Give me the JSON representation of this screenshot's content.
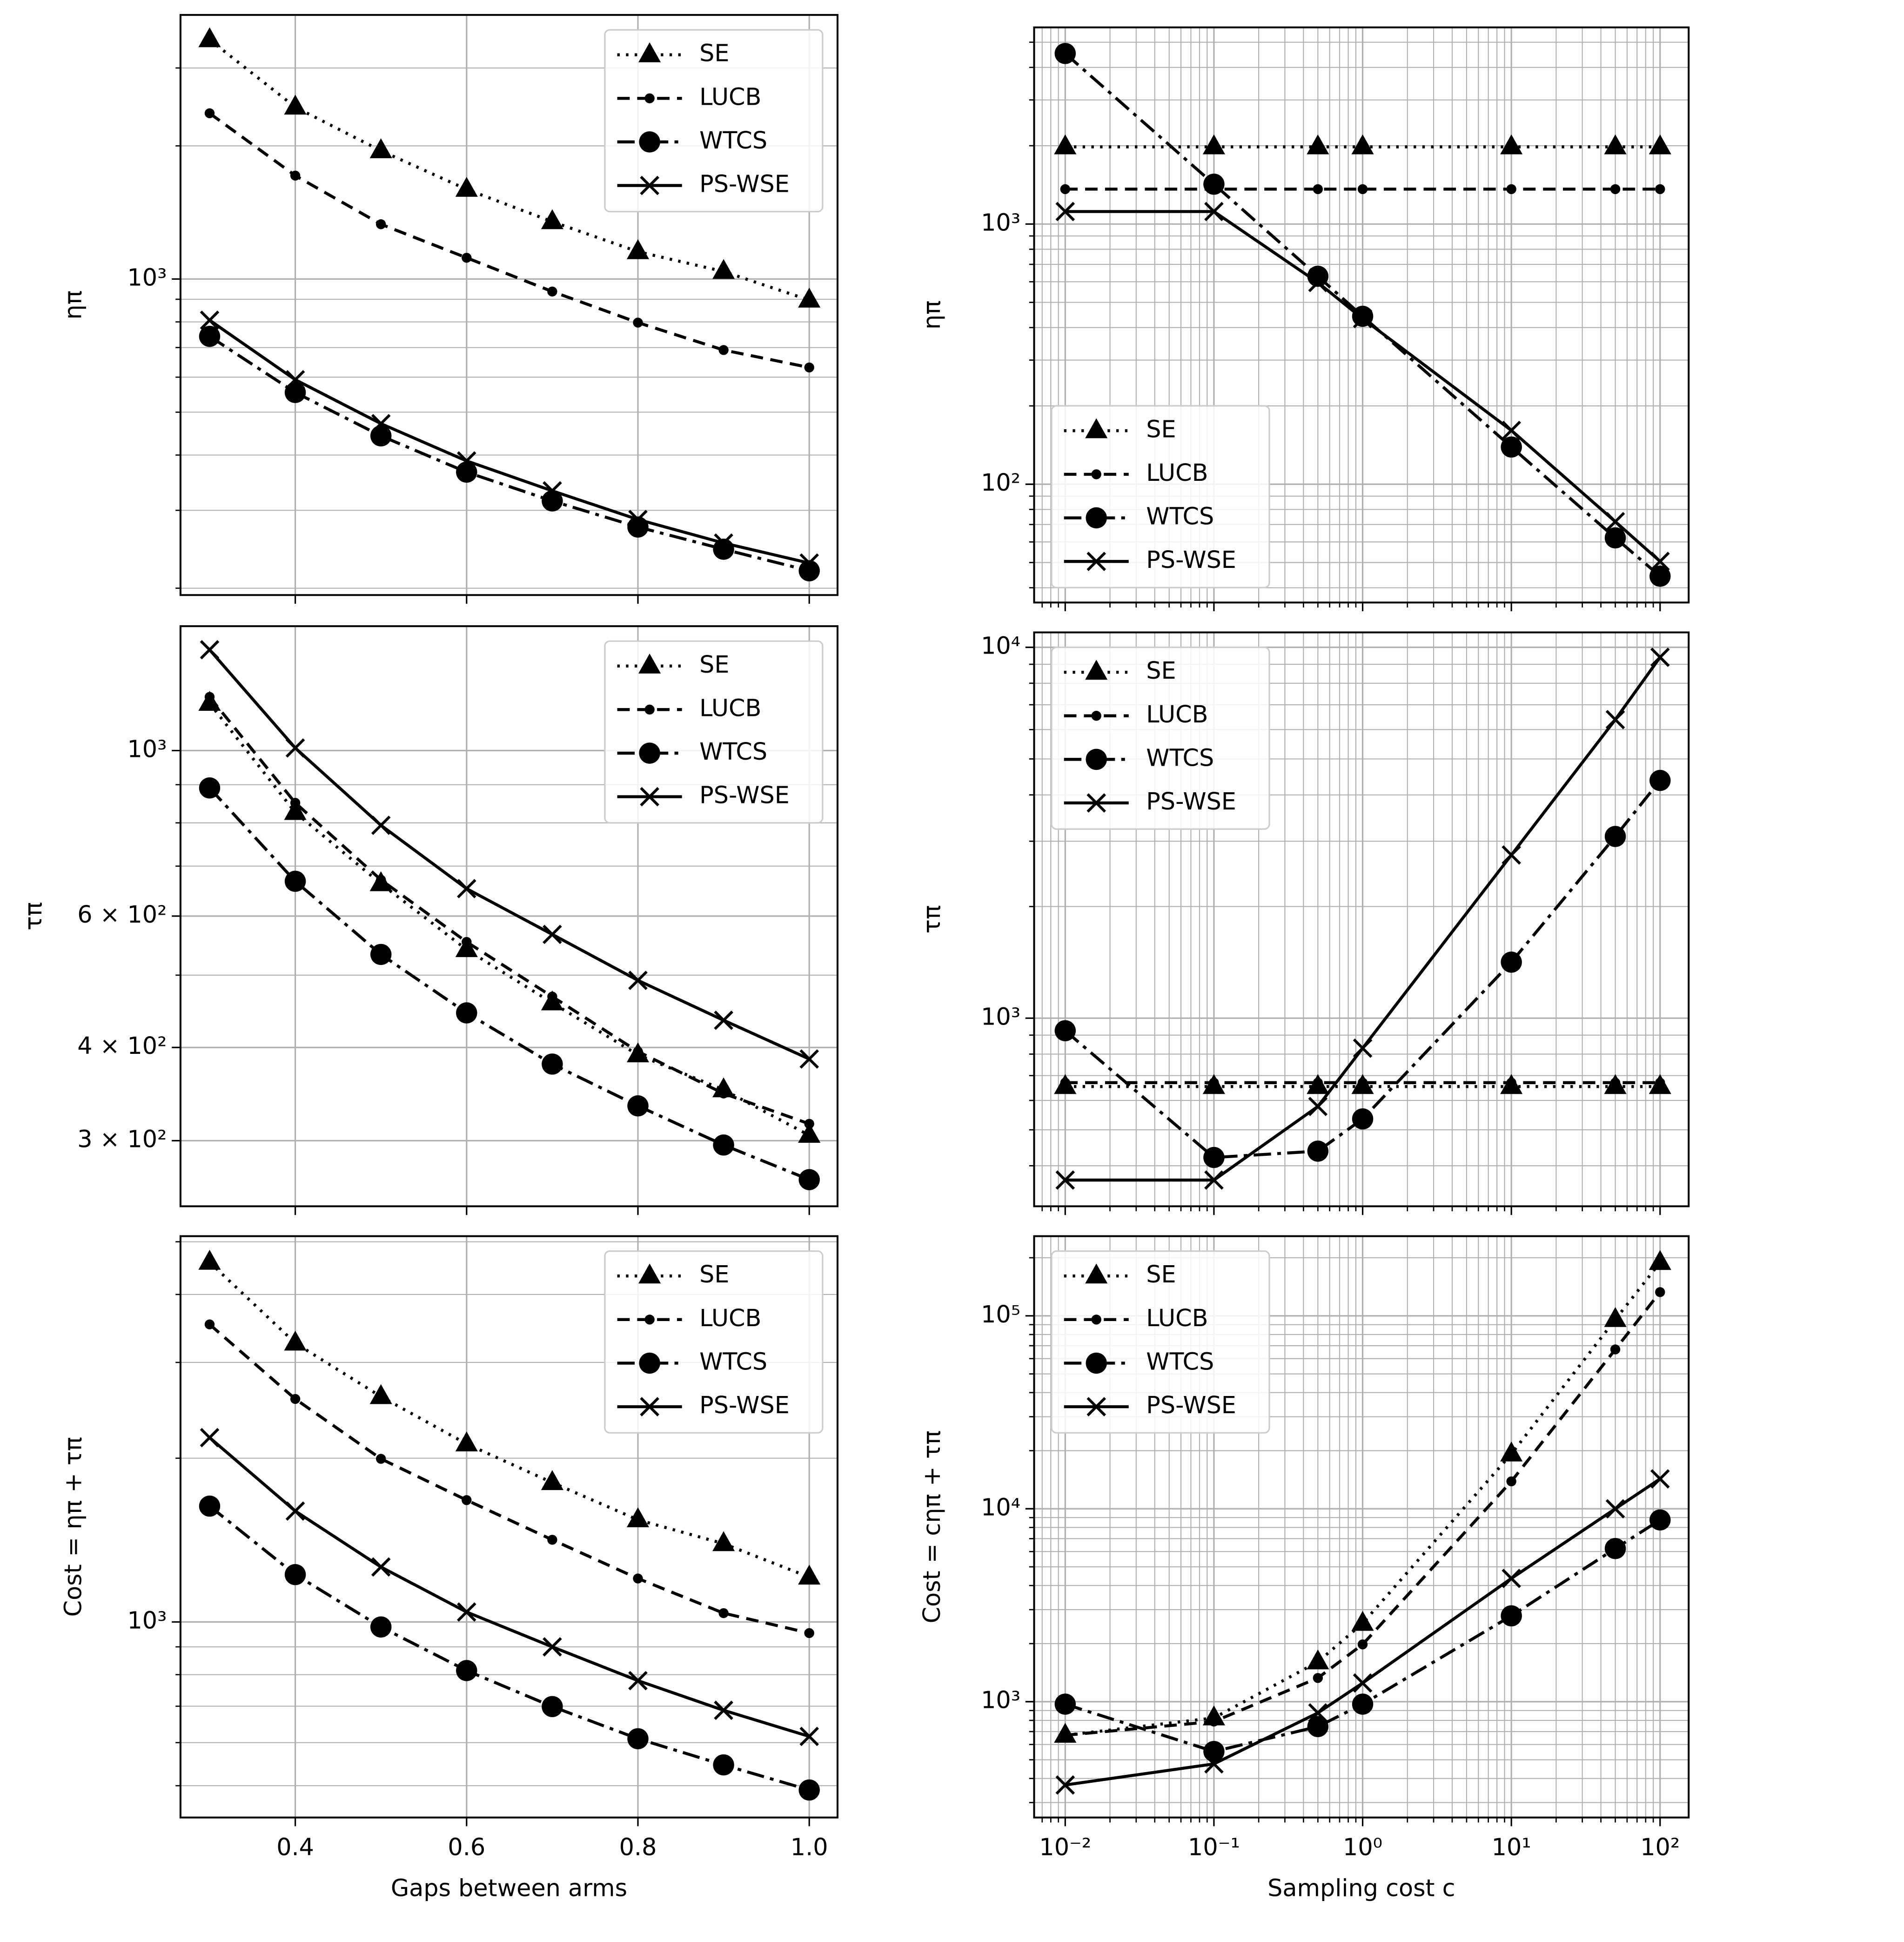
{
  "chart_data": [
    {
      "type": "line",
      "ylabel": "ηπ",
      "xscale": "linear",
      "yscale": "log",
      "grid": true,
      "legend": "upper right",
      "x": [
        0.3,
        0.4,
        0.5,
        0.6,
        0.7,
        0.8,
        0.9,
        1.0
      ],
      "xlim": [
        0.266,
        1.033
      ],
      "xticks": [
        0.4,
        0.6,
        0.8,
        1.0
      ],
      "ylim": [
        193,
        3954
      ],
      "yticks": [
        {
          "value": 1000,
          "label": "10³"
        }
      ],
      "series": [
        {
          "name": "SE",
          "color": "#000000",
          "linestyle": "dotted",
          "marker": "triangle",
          "values": [
            3475,
            2447,
            1950,
            1595,
            1348,
            1153,
            1040,
            896
          ]
        },
        {
          "name": "LUCB",
          "color": "#000000",
          "linestyle": "dashed",
          "marker": "dot",
          "values": [
            2370,
            1713,
            1330,
            1117,
            937,
            797,
            691,
            631
          ]
        },
        {
          "name": "WTCS",
          "color": "#000000",
          "linestyle": "dashdot",
          "marker": "circle",
          "values": [
            742,
            554,
            442,
            366,
            315,
            275,
            245,
            219
          ]
        },
        {
          "name": "PS-WSE",
          "color": "#000000",
          "linestyle": "solid",
          "marker": "x",
          "values": [
            807,
            592,
            471,
            388,
            332,
            286,
            253,
            228
          ]
        }
      ]
    },
    {
      "type": "line",
      "ylabel": "ηπ",
      "xscale": "log",
      "yscale": "log",
      "grid": true,
      "legend": "lower left",
      "x": [
        0.01,
        0.1,
        0.5,
        1,
        10,
        50,
        100
      ],
      "xlim": [
        0.00618,
        155.7
      ],
      "xticks": [
        0.01,
        0.1,
        1,
        10,
        100
      ],
      "ylim": [
        35.1,
        5700
      ],
      "yticks": [
        {
          "value": 100,
          "label": "10²"
        },
        {
          "value": 1000,
          "label": "10³"
        }
      ],
      "series": [
        {
          "name": "SE",
          "color": "#000000",
          "linestyle": "dotted",
          "marker": "triangle",
          "values": [
            1980,
            1980,
            1980,
            1980,
            1980,
            1980,
            1980
          ]
        },
        {
          "name": "LUCB",
          "color": "#000000",
          "linestyle": "dashed",
          "marker": "dot",
          "values": [
            1362,
            1362,
            1362,
            1362,
            1362,
            1362,
            1362
          ]
        },
        {
          "name": "WTCS",
          "color": "#000000",
          "linestyle": "dashdot",
          "marker": "circle",
          "values": [
            4525,
            1423,
            630,
            442,
            139,
            62.2,
            44.3
          ]
        },
        {
          "name": "PS-WSE",
          "color": "#000000",
          "linestyle": "solid",
          "marker": "x",
          "values": [
            1117,
            1117,
            596,
            433,
            161,
            71.8,
            50.5
          ]
        }
      ]
    },
    {
      "type": "line",
      "ylabel": "τπ",
      "xscale": "linear",
      "yscale": "log",
      "grid": true,
      "legend": "upper right",
      "x": [
        0.3,
        0.4,
        0.5,
        0.6,
        0.7,
        0.8,
        0.9,
        1.0
      ],
      "xlim": [
        0.266,
        1.033
      ],
      "xticks": [
        0.4,
        0.6,
        0.8,
        1.0
      ],
      "ylim": [
        245,
        1468
      ],
      "yticks": [
        {
          "value": 300,
          "label": "3 × 10²"
        },
        {
          "value": 400,
          "label": "4 × 10²"
        },
        {
          "value": 600,
          "label": "6 × 10²"
        },
        {
          "value": 1000,
          "label": "10³"
        }
      ],
      "series": [
        {
          "name": "SE",
          "color": "#000000",
          "linestyle": "dotted",
          "marker": "triangle",
          "values": [
            1157,
            826,
            663,
            541,
            459,
            391,
            351,
            305
          ]
        },
        {
          "name": "LUCB",
          "color": "#000000",
          "linestyle": "dashed",
          "marker": "dot",
          "values": [
            1180,
            851,
            671,
            554,
            468,
            395,
            347,
            316
          ]
        },
        {
          "name": "WTCS",
          "color": "#000000",
          "linestyle": "dashdot",
          "marker": "circle",
          "values": [
            891,
            668,
            533,
            445,
            380,
            334,
            296,
            266
          ]
        },
        {
          "name": "PS-WSE",
          "color": "#000000",
          "linestyle": "solid",
          "marker": "x",
          "values": [
            1365,
            1008,
            794,
            653,
            567,
            492,
            435,
            386
          ]
        }
      ]
    },
    {
      "type": "line",
      "ylabel": "τπ",
      "xscale": "log",
      "yscale": "log",
      "grid": true,
      "legend": "upper left",
      "x": [
        0.01,
        0.1,
        0.5,
        1,
        10,
        50,
        100
      ],
      "xlim": [
        0.00618,
        155.7
      ],
      "xticks": [
        0.01,
        0.1,
        1,
        10,
        100
      ],
      "ylim": [
        311,
        10970
      ],
      "yticks": [
        {
          "value": 1000,
          "label": "10³"
        },
        {
          "value": 10000,
          "label": "10⁴"
        }
      ],
      "series": [
        {
          "name": "SE",
          "color": "#000000",
          "linestyle": "dotted",
          "marker": "triangle",
          "values": [
            654,
            654,
            654,
            654,
            654,
            654,
            654
          ]
        },
        {
          "name": "LUCB",
          "color": "#000000",
          "linestyle": "dashed",
          "marker": "dot",
          "values": [
            670,
            670,
            670,
            670,
            670,
            670,
            670
          ]
        },
        {
          "name": "WTCS",
          "color": "#000000",
          "linestyle": "dashdot",
          "marker": "circle",
          "values": [
            925,
            421,
            438,
            535,
            1416,
            3090,
            4375
          ]
        },
        {
          "name": "PS-WSE",
          "color": "#000000",
          "linestyle": "solid",
          "marker": "x",
          "values": [
            366,
            366,
            578,
            830,
            2754,
            6383,
            9400
          ]
        }
      ]
    },
    {
      "type": "line",
      "ylabel": "Cost = ηπ + τπ",
      "xlabel": "Gaps between arms",
      "xscale": "linear",
      "yscale": "log",
      "grid": true,
      "legend": "upper right",
      "x": [
        0.3,
        0.4,
        0.5,
        0.6,
        0.7,
        0.8,
        0.9,
        1.0
      ],
      "xlim": [
        0.266,
        1.033
      ],
      "xticks": [
        0.4,
        0.6,
        0.8,
        {
          "value": 1,
          "label": "1.0"
        }
      ],
      "ylim": [
        437,
        5120
      ],
      "yticks": [
        {
          "value": 1000,
          "label": "10³"
        }
      ],
      "series": [
        {
          "name": "SE",
          "color": "#000000",
          "linestyle": "dotted",
          "marker": "triangle",
          "values": [
            4585,
            3256,
            2596,
            2125,
            1804,
            1541,
            1393,
            1209
          ]
        },
        {
          "name": "LUCB",
          "color": "#000000",
          "linestyle": "dashed",
          "marker": "dot",
          "values": [
            3524,
            2570,
            1995,
            1675,
            1416,
            1202,
            1038,
            954
          ]
        },
        {
          "name": "WTCS",
          "color": "#000000",
          "linestyle": "dashdot",
          "marker": "circle",
          "values": [
            1633,
            1222,
            979,
            814,
            699,
            610,
            546,
            491
          ]
        },
        {
          "name": "PS-WSE",
          "color": "#000000",
          "linestyle": "solid",
          "marker": "x",
          "values": [
            2182,
            1599,
            1262,
            1043,
            900,
            780,
            688,
            616
          ]
        }
      ]
    },
    {
      "type": "line",
      "ylabel": "Cost = cηπ + τπ",
      "xlabel": "Sampling cost c",
      "xscale": "log",
      "yscale": "log",
      "grid": true,
      "legend": "upper left",
      "x": [
        0.01,
        0.1,
        0.5,
        1,
        10,
        50,
        100
      ],
      "xlim": [
        0.00618,
        155.7
      ],
      "xticks": [
        {
          "value": 0.01,
          "label": "10⁻²"
        },
        {
          "value": 0.1,
          "label": "10⁻¹"
        },
        {
          "value": 1,
          "label": "10⁰"
        },
        {
          "value": 10,
          "label": "10¹"
        },
        {
          "value": 100,
          "label": "10²"
        }
      ],
      "ylim": [
        251,
        258800
      ],
      "yticks": [
        {
          "value": 1000,
          "label": "10³"
        },
        {
          "value": 10000,
          "label": "10⁴"
        },
        {
          "value": 100000,
          "label": "10⁵"
        }
      ],
      "series": [
        {
          "name": "SE",
          "color": "#000000",
          "linestyle": "dotted",
          "marker": "triangle",
          "values": [
            670,
            824,
            1608,
            2547,
            19230,
            95700,
            189000
          ]
        },
        {
          "name": "LUCB",
          "color": "#000000",
          "linestyle": "dashed",
          "marker": "dot",
          "values": [
            670,
            789,
            1327,
            1981,
            13870,
            66970,
            132700
          ]
        },
        {
          "name": "WTCS",
          "color": "#000000",
          "linestyle": "dashdot",
          "marker": "circle",
          "values": [
            971,
            552,
            743,
            971,
            2786,
            6220,
            8750
          ]
        },
        {
          "name": "PS-WSE",
          "color": "#000000",
          "linestyle": "solid",
          "marker": "x",
          "values": [
            370,
            476,
            875,
            1250,
            4355,
            10000,
            14290
          ]
        }
      ]
    }
  ]
}
